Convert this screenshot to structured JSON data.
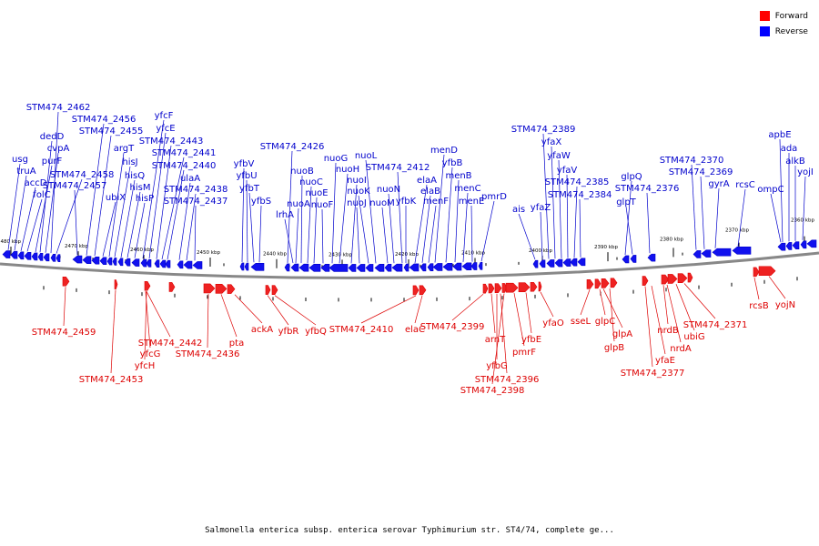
{
  "legend": [
    {
      "label": "Forward",
      "color": "#ff0000"
    },
    {
      "label": "Reverse",
      "color": "#0000ff"
    }
  ],
  "caption": "Salmonella enterica subsp. enterica serovar Typhimurium str. ST4/74, complete ge...",
  "colors": {
    "forward": "#dd0000",
    "forward_fill": "#ee2222",
    "reverse": "#0000cc",
    "reverse_fill": "#1111ee",
    "backbone": "#888888"
  },
  "scale": {
    "unit": "kbp",
    "ticks": [
      "2480 kbp",
      "2470 kbp",
      "2460 kbp",
      "2450 kbp",
      "2440 kbp",
      "2430 kbp",
      "2420 kbp",
      "2410 kbp",
      "2400 kbp",
      "2390 kbp",
      "2380 kbp",
      "2370 kbp",
      "2360 kbp"
    ]
  },
  "reverse_genes": [
    "usg",
    "truA",
    "accD",
    "folC",
    "purF",
    "dedD",
    "cvpA",
    "STM474_2462",
    "STM474_2458",
    "STM474_2457",
    "STM474_2456",
    "STM474_2455",
    "ubiX",
    "argT",
    "hisJ",
    "hisQ",
    "hisM",
    "hisP",
    "yfcF",
    "yfcE",
    "STM474_2443",
    "STM474_2441",
    "STM474_2440",
    "ulaA",
    "STM474_2438",
    "STM474_2437",
    "yfbV",
    "yfbU",
    "yfbT",
    "yfbS",
    "STM474_2426",
    "lrhA",
    "nuoA",
    "nuoB",
    "nuoC",
    "nuoE",
    "nuoF",
    "nuoG",
    "nuoH",
    "nuoI",
    "nuoJ",
    "nuoK",
    "nuoL",
    "nuoM",
    "nuoN",
    "STM474_2412",
    "yfbK",
    "elaA",
    "elaB",
    "menF",
    "menD",
    "yfbB",
    "menB",
    "menC",
    "menE",
    "pmrD",
    "ais",
    "yfaZ",
    "STM474_2389",
    "yfaX",
    "yfaW",
    "yfaV",
    "STM474_2385",
    "STM474_2384",
    "glpQ",
    "glpT",
    "STM474_2376",
    "STM474_2370",
    "STM474_2369",
    "gyrA",
    "rcsC",
    "ompC",
    "apbE",
    "ada",
    "alkB",
    "yojI"
  ],
  "forward_genes": [
    "STM474_2459",
    "STM474_2453",
    "STM474_2442",
    "yfcG",
    "yfcH",
    "STM474_2436",
    "pta",
    "ackA",
    "yfbR",
    "yfbQ",
    "STM474_2410",
    "elaC",
    "STM474_2399",
    "arnT",
    "yfbG",
    "STM474_2396",
    "STM474_2398",
    "pmrF",
    "yfbE",
    "yfaO",
    "sseL",
    "glpC",
    "glpA",
    "glpB",
    "STM474_2377",
    "yfaE",
    "nrdB",
    "nrdA",
    "ubiG",
    "STM474_2371",
    "rcsB",
    "yojN"
  ]
}
